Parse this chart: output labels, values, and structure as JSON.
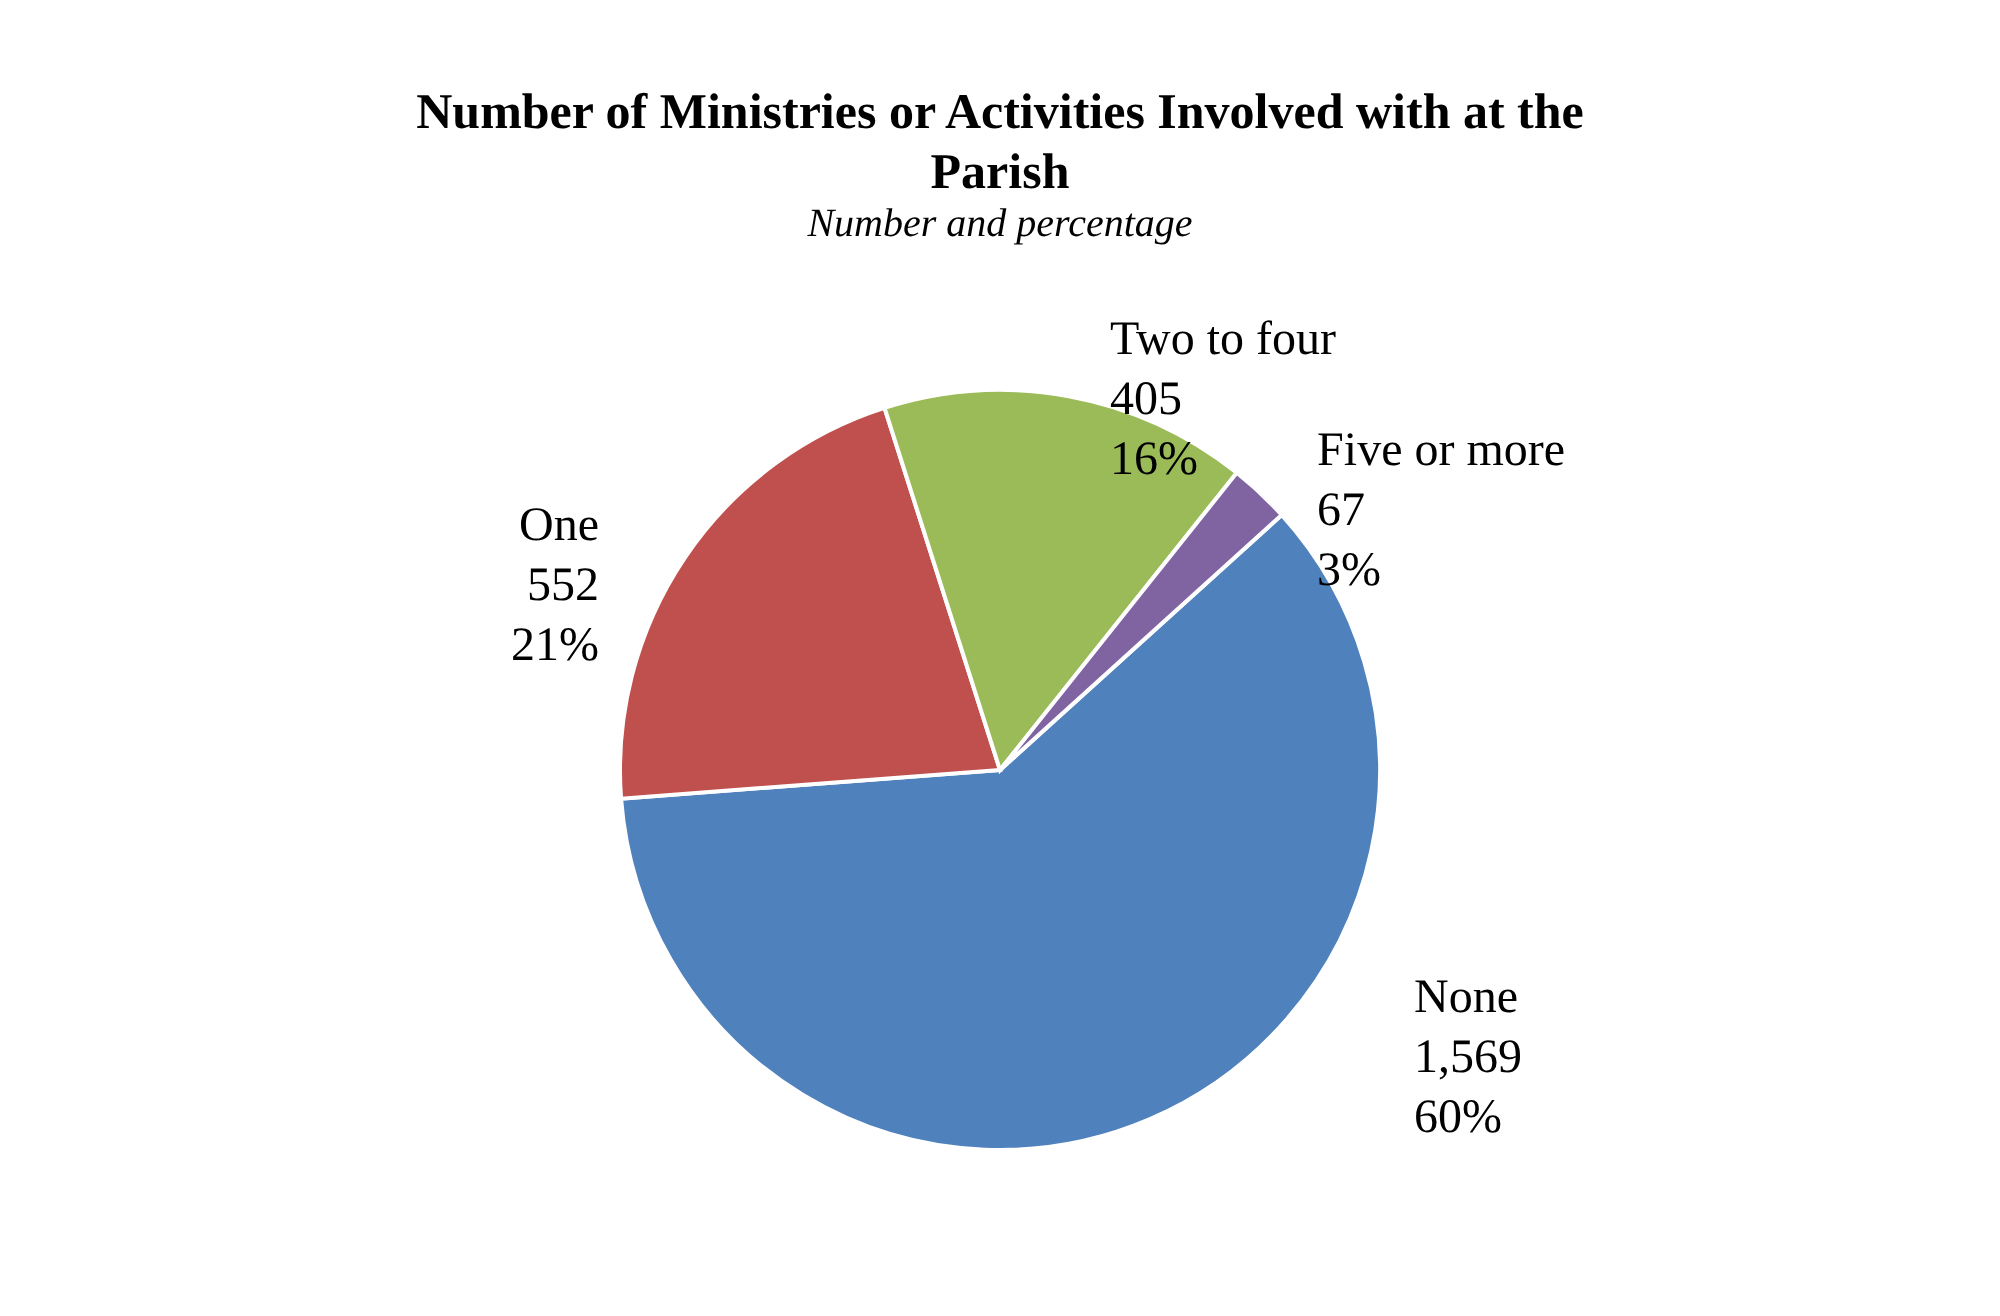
{
  "chart_data": {
    "type": "pie",
    "title": "Number of Ministries or Activities Involved with at the Parish",
    "subtitle": "Number and percentage",
    "categories": [
      "None",
      "One",
      "Two to four",
      "Five or more"
    ],
    "values": [
      1569,
      552,
      405,
      67
    ],
    "value_labels": [
      "1,569\n60%",
      "552\n21%",
      "405\n16%",
      "67\n3%"
    ],
    "colors": [
      "#4f81bd",
      "#c0504d",
      "#9bbb59",
      "#8064a2"
    ],
    "legend": false
  }
}
